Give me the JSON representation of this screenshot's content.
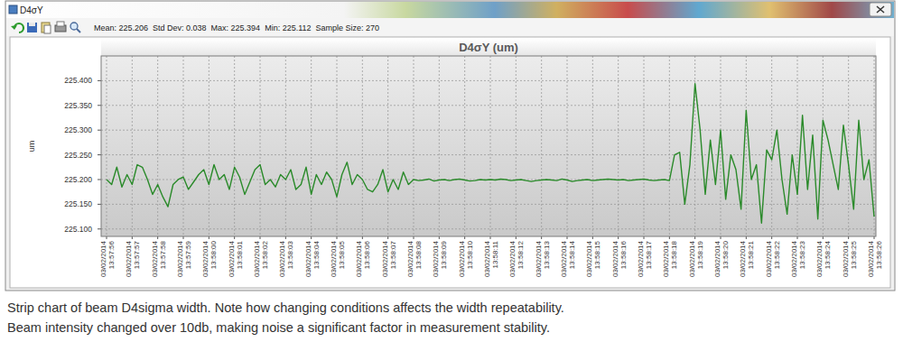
{
  "window": {
    "title": "D4σY"
  },
  "stats": [
    "Mean: 225.206",
    "Std Dev: 0.038",
    "Max: 225.394",
    "Min: 225.112",
    "Sample Size: 270"
  ],
  "chart_data": {
    "type": "line",
    "title": "D4σY (um)",
    "y_label": "um",
    "color": "#2a8a2a",
    "grid": true,
    "ylim": [
      225.085,
      225.45
    ],
    "yticks": [
      {
        "value": 225.1,
        "label": "225.100"
      },
      {
        "value": 225.15,
        "label": "225.150"
      },
      {
        "value": 225.2,
        "label": "225.200"
      },
      {
        "value": 225.25,
        "label": "225.250"
      },
      {
        "value": 225.3,
        "label": "225.300"
      },
      {
        "value": 225.35,
        "label": "225.350"
      },
      {
        "value": 225.4,
        "label": "225.400"
      }
    ],
    "categories": [
      "03/02/2014 13:57:56",
      null,
      null,
      null,
      null,
      "03/02/2014 13:57:57",
      null,
      null,
      null,
      null,
      "03/02/2014 13:57:58",
      null,
      null,
      null,
      null,
      "03/02/2014 13:57:59",
      null,
      null,
      null,
      null,
      "03/02/2014 13:58:00",
      null,
      null,
      null,
      null,
      "03/02/2014 13:58:01",
      null,
      null,
      null,
      null,
      "03/02/2014 13:58:02",
      null,
      null,
      null,
      null,
      "03/02/2014 13:58:03",
      null,
      null,
      null,
      null,
      "03/02/2014 13:58:04",
      null,
      null,
      null,
      null,
      "03/02/2014 13:58:05",
      null,
      null,
      null,
      null,
      "03/02/2014 13:58:06",
      null,
      null,
      null,
      null,
      "03/02/2014 13:58:07",
      null,
      null,
      null,
      null,
      "03/02/2014 13:58:08",
      null,
      null,
      null,
      null,
      "03/02/2014 13:58:09",
      null,
      null,
      null,
      null,
      "03/02/2014 13:58:10",
      null,
      null,
      null,
      null,
      "03/02/2014 13:58:11",
      null,
      null,
      null,
      null,
      "03/02/2014 13:58:12",
      null,
      null,
      null,
      null,
      "03/02/2014 13:58:13",
      null,
      null,
      null,
      null,
      "03/02/2014 13:58:14",
      null,
      null,
      null,
      null,
      "03/02/2014 13:58:15",
      null,
      null,
      null,
      null,
      "03/02/2014 13:58:16",
      null,
      null,
      null,
      null,
      "03/02/2014 13:58:17",
      null,
      null,
      null,
      null,
      "03/02/2014 13:58:18",
      null,
      null,
      null,
      null,
      "03/02/2014 13:58:19",
      null,
      null,
      null,
      null,
      "03/02/2014 13:58:20",
      null,
      null,
      null,
      null,
      "03/02/2014 13:58:21",
      null,
      null,
      null,
      null,
      "03/02/2014 13:58:22",
      null,
      null,
      null,
      null,
      "03/02/2014 13:58:23",
      null,
      null,
      null,
      null,
      "03/02/2014 13:58:24",
      null,
      null,
      null,
      null,
      "03/02/2014 13:58:25",
      null,
      null,
      null,
      null,
      "03/02/2014 13:58:26"
    ],
    "values": [
      225.2,
      225.19,
      225.225,
      225.185,
      225.21,
      225.19,
      225.23,
      225.225,
      225.2,
      225.17,
      225.19,
      225.165,
      225.145,
      225.19,
      225.2,
      225.205,
      225.18,
      225.195,
      225.21,
      225.22,
      225.19,
      225.23,
      225.2,
      225.21,
      225.18,
      225.225,
      225.205,
      225.17,
      225.195,
      225.22,
      225.23,
      225.19,
      225.2,
      225.185,
      225.21,
      225.2,
      225.22,
      225.18,
      225.19,
      225.225,
      225.17,
      225.21,
      225.19,
      225.215,
      225.2,
      225.165,
      225.21,
      225.235,
      225.19,
      225.21,
      225.2,
      225.18,
      225.175,
      225.19,
      225.22,
      225.175,
      225.2,
      225.18,
      225.215,
      225.19,
      225.2,
      225.198,
      225.199,
      225.201,
      225.197,
      225.199,
      225.2,
      225.198,
      225.2,
      225.201,
      225.199,
      225.197,
      225.198,
      225.2,
      225.199,
      225.2,
      225.199,
      225.201,
      225.2,
      225.198,
      225.199,
      225.2,
      225.198,
      225.196,
      225.198,
      225.199,
      225.2,
      225.199,
      225.198,
      225.201,
      225.199,
      225.196,
      225.198,
      225.199,
      225.2,
      225.198,
      225.199,
      225.2,
      225.201,
      225.2,
      225.199,
      225.2,
      225.198,
      225.199,
      225.2,
      225.201,
      225.199,
      225.198,
      225.199,
      225.2,
      225.198,
      225.25,
      225.255,
      225.15,
      225.23,
      225.394,
      225.3,
      225.17,
      225.28,
      225.19,
      225.3,
      225.16,
      225.25,
      225.22,
      225.14,
      225.34,
      225.2,
      225.23,
      225.112,
      225.26,
      225.24,
      225.3,
      225.2,
      225.13,
      225.25,
      225.17,
      225.33,
      225.18,
      225.29,
      225.12,
      225.32,
      225.28,
      225.23,
      225.18,
      225.31,
      225.23,
      225.14,
      225.32,
      225.2,
      225.24,
      225.125
    ]
  },
  "caption": [
    "Strip chart of beam D4sigma width. Note how changing conditions affects the width repeatability.",
    "Beam intensity changed over 10db, making noise a significant factor in measurement stability."
  ]
}
